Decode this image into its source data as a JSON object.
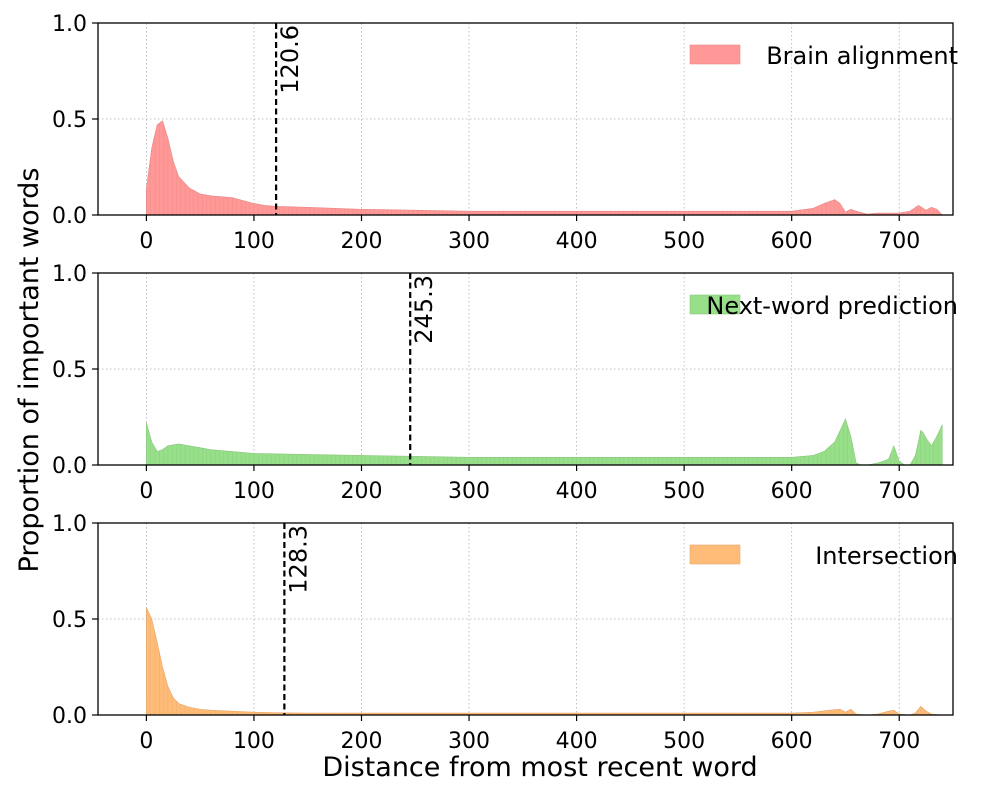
{
  "figure": {
    "xlabel": "Distance from most recent word",
    "ylabel": "Proportion of important words"
  },
  "chart_data": [
    {
      "type": "area",
      "legend": "Brain alignment",
      "legend_position": "top-right",
      "color": "#ff9896",
      "grid": true,
      "xlim": [
        -45,
        750
      ],
      "ylim": [
        0,
        1.0
      ],
      "xticks": [
        0,
        100,
        200,
        300,
        400,
        500,
        600,
        700
      ],
      "yticks": [
        0.0,
        0.5,
        1.0
      ],
      "ytick_labels": [
        "0.0",
        "0.5",
        "1.0"
      ],
      "vline": {
        "x": 120.6,
        "label": "120.6"
      },
      "x": [
        0,
        5,
        10,
        15,
        20,
        25,
        30,
        40,
        50,
        60,
        80,
        100,
        110,
        120,
        150,
        200,
        250,
        300,
        350,
        400,
        450,
        500,
        550,
        600,
        620,
        630,
        640,
        645,
        650,
        655,
        660,
        670,
        680,
        690,
        700,
        710,
        718,
        725,
        730,
        735,
        740
      ],
      "y": [
        0.14,
        0.35,
        0.47,
        0.49,
        0.4,
        0.28,
        0.2,
        0.14,
        0.11,
        0.1,
        0.09,
        0.06,
        0.05,
        0.045,
        0.04,
        0.03,
        0.025,
        0.02,
        0.02,
        0.02,
        0.02,
        0.02,
        0.02,
        0.02,
        0.035,
        0.06,
        0.08,
        0.06,
        0.015,
        0.03,
        0.02,
        0.005,
        0.01,
        0.01,
        0.01,
        0.02,
        0.05,
        0.025,
        0.04,
        0.03,
        0.0
      ]
    },
    {
      "type": "area",
      "legend": "Next-word prediction",
      "legend_position": "top-right",
      "color": "#98df8a",
      "grid": true,
      "xlim": [
        -45,
        750
      ],
      "ylim": [
        0,
        1.0
      ],
      "xticks": [
        0,
        100,
        200,
        300,
        400,
        500,
        600,
        700
      ],
      "yticks": [
        0.0,
        0.5,
        1.0
      ],
      "ytick_labels": [
        "0.0",
        "0.5",
        "1.0"
      ],
      "vline": {
        "x": 245.3,
        "label": "245.3"
      },
      "x": [
        0,
        5,
        10,
        15,
        20,
        30,
        40,
        50,
        60,
        80,
        100,
        150,
        200,
        250,
        300,
        350,
        400,
        450,
        500,
        550,
        600,
        620,
        630,
        640,
        645,
        650,
        655,
        660,
        665,
        670,
        680,
        690,
        695,
        700,
        705,
        710,
        715,
        720,
        722,
        725,
        730,
        735,
        740
      ],
      "y": [
        0.22,
        0.12,
        0.07,
        0.08,
        0.1,
        0.11,
        0.1,
        0.09,
        0.08,
        0.07,
        0.06,
        0.055,
        0.05,
        0.045,
        0.04,
        0.04,
        0.04,
        0.04,
        0.04,
        0.04,
        0.04,
        0.05,
        0.07,
        0.12,
        0.18,
        0.24,
        0.15,
        0.01,
        0.0,
        0.0,
        0.01,
        0.03,
        0.1,
        0.02,
        0.0,
        0.0,
        0.05,
        0.18,
        0.17,
        0.14,
        0.1,
        0.15,
        0.21
      ]
    },
    {
      "type": "area",
      "legend": "Intersection",
      "legend_position": "top-right",
      "color": "#ffbb78",
      "grid": true,
      "xlim": [
        -45,
        750
      ],
      "ylim": [
        0,
        1.0
      ],
      "xticks": [
        0,
        100,
        200,
        300,
        400,
        500,
        600,
        700
      ],
      "yticks": [
        0.0,
        0.5,
        1.0
      ],
      "ytick_labels": [
        "0.0",
        "0.5",
        "1.0"
      ],
      "vline": {
        "x": 128.3,
        "label": "128.3"
      },
      "x": [
        0,
        5,
        10,
        15,
        20,
        25,
        30,
        40,
        50,
        60,
        80,
        100,
        120,
        150,
        200,
        250,
        300,
        400,
        500,
        600,
        620,
        635,
        645,
        650,
        655,
        660,
        670,
        680,
        690,
        695,
        700,
        710,
        715,
        720,
        725,
        730,
        740
      ],
      "y": [
        0.56,
        0.5,
        0.38,
        0.25,
        0.15,
        0.09,
        0.06,
        0.04,
        0.03,
        0.025,
        0.02,
        0.015,
        0.012,
        0.01,
        0.01,
        0.01,
        0.01,
        0.01,
        0.01,
        0.01,
        0.015,
        0.025,
        0.03,
        0.015,
        0.03,
        0.005,
        0.0,
        0.005,
        0.02,
        0.025,
        0.005,
        0.0,
        0.01,
        0.045,
        0.02,
        0.005,
        0.0
      ]
    }
  ]
}
